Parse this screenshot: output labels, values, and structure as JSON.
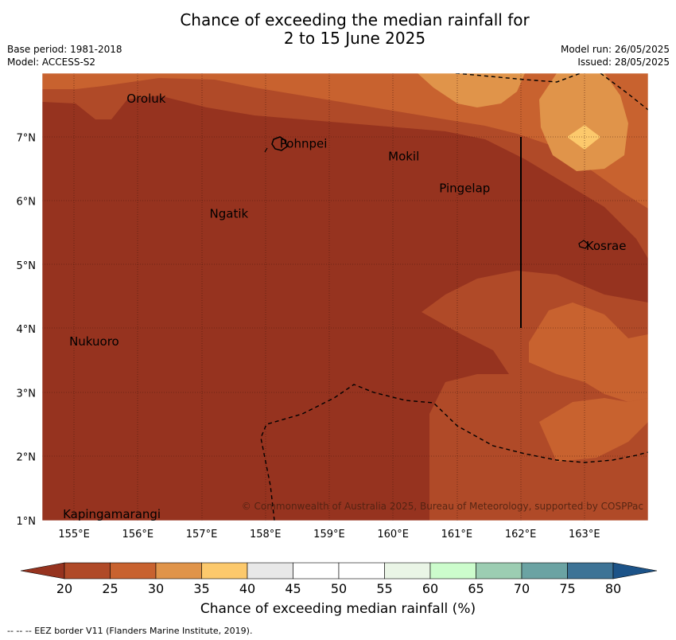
{
  "title": {
    "line1": "Chance of exceeding the median rainfall for",
    "line2": "2 to 15 June 2025"
  },
  "meta": {
    "base_period": "Base period: 1981-2018",
    "model": "Model: ACCESS-S2",
    "model_run": "Model run: 26/05/2025",
    "issued": "Issued: 28/05/2025"
  },
  "map": {
    "lon_range": [
      154.5,
      164.0
    ],
    "lat_range": [
      1.0,
      8.0
    ],
    "x_ticks": [
      "155°E",
      "156°E",
      "157°E",
      "158°E",
      "159°E",
      "160°E",
      "161°E",
      "162°E",
      "163°E"
    ],
    "y_ticks": [
      "7°N",
      "6°N",
      "5°N",
      "4°N",
      "3°N",
      "2°N",
      "1°N"
    ],
    "places": [
      {
        "name": "Oroluk",
        "lon": 155.8,
        "lat": 7.6
      },
      {
        "name": "Pohnpei",
        "lon": 158.2,
        "lat": 6.9
      },
      {
        "name": "Mokil",
        "lon": 159.9,
        "lat": 6.7
      },
      {
        "name": "Pingelap",
        "lon": 160.7,
        "lat": 6.2
      },
      {
        "name": "Ngatik",
        "lon": 157.1,
        "lat": 5.8
      },
      {
        "name": "Kosrae",
        "lon": 163.0,
        "lat": 5.3
      },
      {
        "name": "Nukuoro",
        "lon": 154.9,
        "lat": 3.8
      },
      {
        "name": "Kapingamarangi",
        "lon": 154.8,
        "lat": 1.1
      }
    ],
    "copyright": "© Commonwealth of Australia 2025, Bureau of Meteorology, supported by COSPPac"
  },
  "colorbar": {
    "ticks": [
      "20",
      "25",
      "30",
      "35",
      "40",
      "45",
      "50",
      "55",
      "60",
      "65",
      "70",
      "75",
      "80"
    ],
    "colors": [
      "#b04a28",
      "#c8622f",
      "#e0944a",
      "#fcc96c",
      "#e8e8e8",
      "#ffffff",
      "#ffffff",
      "#eaf5e6",
      "#ccfccc",
      "#9ccdb2",
      "#6ba3a3",
      "#3d7396"
    ],
    "under_color": "#96331f",
    "over_color": "#1c5388",
    "label": "Chance of exceeding median rainfall (%)"
  },
  "footer": "--  --  -- EEZ border V11 (Flanders Marine Institute, 2019)."
}
